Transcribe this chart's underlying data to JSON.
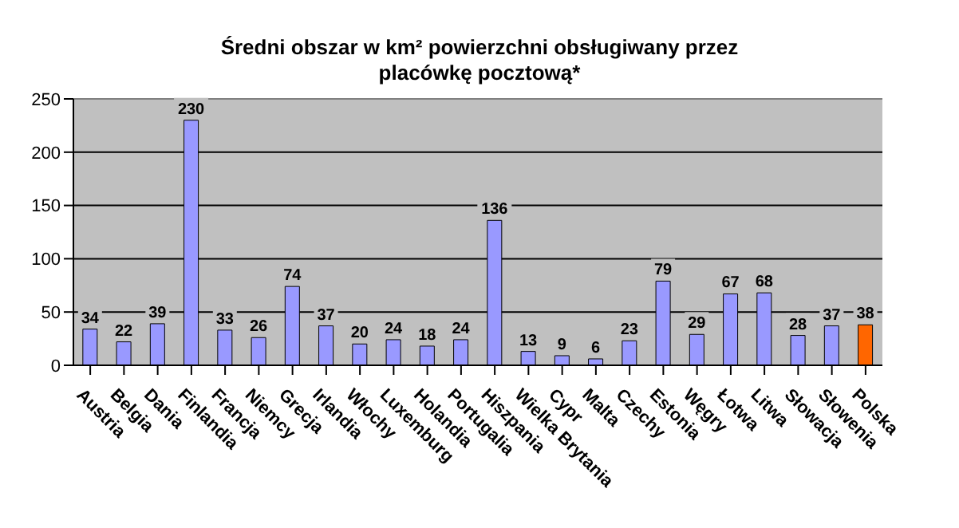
{
  "chart_data": {
    "type": "bar",
    "title": "Średni obszar w km² powierzchni obsługiwany przez placówkę pocztową*",
    "categories": [
      "Austria",
      "Belgia",
      "Dania",
      "Finlandia",
      "Francja",
      "Niemcy",
      "Grecja",
      "Irlandia",
      "Włochy",
      "Luxemburg",
      "Holandia",
      "Portugalia",
      "Hiszpania",
      "Wielka Brytania",
      "Cypr",
      "Malta",
      "Czechy",
      "Estonia",
      "Węgry",
      "Łotwa",
      "Litwa",
      "Słowacja",
      "Słowenia",
      "Polska"
    ],
    "values": [
      34,
      22,
      39,
      230,
      33,
      26,
      74,
      37,
      20,
      24,
      18,
      24,
      136,
      13,
      9,
      6,
      23,
      79,
      29,
      67,
      68,
      28,
      37,
      38
    ],
    "colors": [
      "#9999ff",
      "#9999ff",
      "#9999ff",
      "#9999ff",
      "#9999ff",
      "#9999ff",
      "#9999ff",
      "#9999ff",
      "#9999ff",
      "#9999ff",
      "#9999ff",
      "#9999ff",
      "#9999ff",
      "#9999ff",
      "#9999ff",
      "#9999ff",
      "#9999ff",
      "#9999ff",
      "#9999ff",
      "#9999ff",
      "#9999ff",
      "#9999ff",
      "#9999ff",
      "#ff6600"
    ],
    "ylim": [
      0,
      250
    ],
    "yticks": [
      0,
      50,
      100,
      150,
      200,
      250
    ],
    "grid": "y",
    "data_labels": true
  }
}
